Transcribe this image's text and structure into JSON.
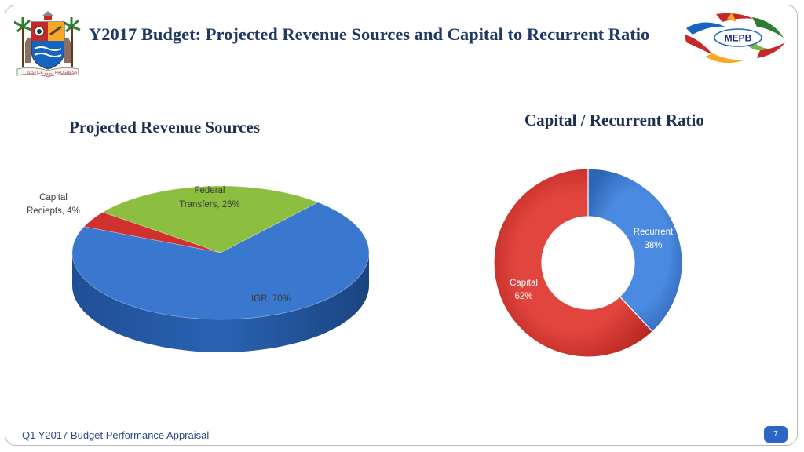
{
  "slide": {
    "title": "Y2017 Budget: Projected Revenue Sources and Capital to Recurrent Ratio",
    "footer": "Q1 Y2017 Budget Performance Appraisal",
    "page_number": "7",
    "logo_right_text": "MEPB",
    "logo_left_text": [
      "JUSTICE",
      "AND",
      "PROGRESS"
    ]
  },
  "chart_data": [
    {
      "type": "pie",
      "title": "Projected Revenue Sources",
      "slices": [
        {
          "label": "Capital Reciepts, 4%",
          "value": 4,
          "color": "#d0312d"
        },
        {
          "label": "Federal Transfers, 26%",
          "value": 26,
          "color": "#8cbf3f"
        },
        {
          "label": "IGR, 70%",
          "value": 70,
          "color": "#3a78d0"
        }
      ]
    },
    {
      "type": "pie",
      "subtype": "doughnut",
      "title": "Capital / Recurrent Ratio",
      "slices": [
        {
          "label": "Recurrent 38%",
          "value": 38,
          "color": "#3a78d0"
        },
        {
          "label": "Capital 62%",
          "value": 62,
          "color": "#d0312d"
        }
      ]
    }
  ]
}
